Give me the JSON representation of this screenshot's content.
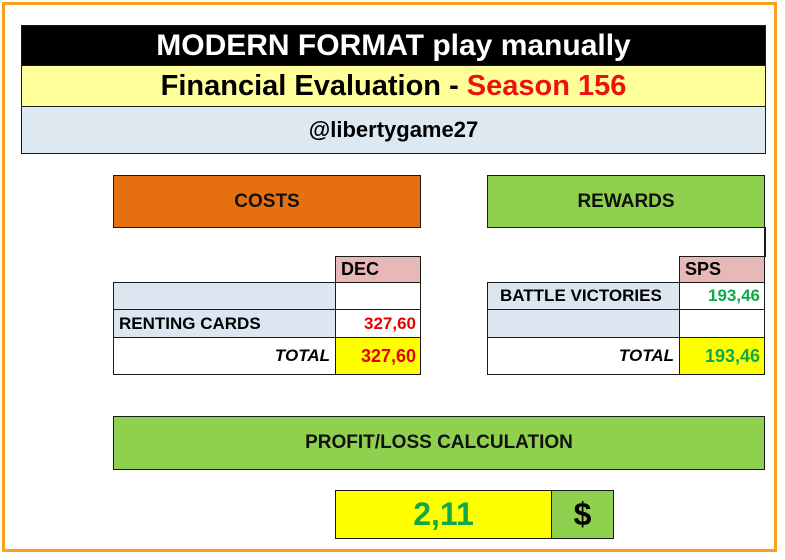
{
  "header": {
    "line1": "MODERN FORMAT play manually",
    "line2_prefix": "Financial Evaluation -",
    "line2_season": "Season 156",
    "line3": "@libertygame27"
  },
  "costs": {
    "title": "COSTS",
    "currency_header": "DEC",
    "rows": [
      {
        "label": "",
        "value": ""
      },
      {
        "label": "RENTING CARDS",
        "value": "327,60"
      }
    ],
    "total_label": "TOTAL",
    "total_value": "327,60"
  },
  "rewards": {
    "title": "REWARDS",
    "currency_header": "SPS",
    "rows": [
      {
        "label": "BATTLE VICTORIES",
        "value": "193,46"
      },
      {
        "label": "",
        "value": ""
      }
    ],
    "total_label": "TOTAL",
    "total_value": "193,46"
  },
  "profit": {
    "title": "PROFIT/LOSS CALCULATION",
    "value": "2,11",
    "currency_symbol": "$"
  },
  "colors": {
    "frame": "#f7a11c",
    "costs_header": "#e6700f",
    "rewards_header": "#8fd14f",
    "currency_header_bg": "#e6b8b7",
    "label_bg": "#dce6f1",
    "total_bg": "#ffff00",
    "cost_value": "#e60000",
    "reward_value": "#11a84a"
  }
}
